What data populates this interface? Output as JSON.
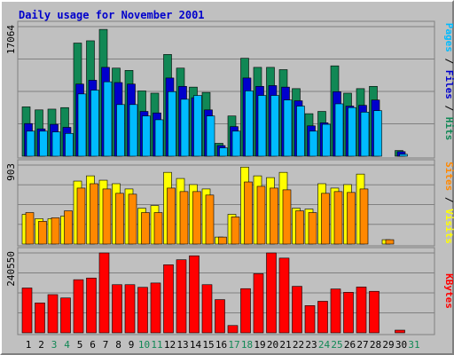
{
  "chart_data": {
    "type": "bar",
    "title": "Daily usage for November 2001",
    "days": [
      "1",
      "2",
      "3",
      "4",
      "5",
      "6",
      "7",
      "8",
      "9",
      "10",
      "11",
      "12",
      "13",
      "14",
      "15",
      "16",
      "17",
      "18",
      "19",
      "20",
      "21",
      "22",
      "23",
      "24",
      "25",
      "26",
      "27",
      "28",
      "29",
      "30",
      "31"
    ],
    "weekend_days": [
      "3",
      "4",
      "10",
      "11",
      "17",
      "18",
      "24",
      "25",
      "31"
    ],
    "panels": {
      "hits_files_pages": {
        "y_max_label": "17064",
        "ylim": [
          0,
          17064
        ],
        "series": [
          {
            "name": "Hits",
            "color": "#118855",
            "values": [
              6500,
              6100,
              6200,
              6400,
              14900,
              15200,
              16700,
              11600,
              11300,
              8600,
              8300,
              13400,
              11600,
              9100,
              8400,
              1700,
              5300,
              12900,
              11700,
              11700,
              11400,
              8900,
              5600,
              5900,
              11900,
              8300,
              8900,
              9200,
              0,
              750,
              0
            ]
          },
          {
            "name": "Files",
            "color": "#0000cc",
            "values": [
              4300,
              3600,
              4200,
              3800,
              9500,
              10000,
              11700,
              9700,
              9500,
              5900,
              5700,
              10300,
              9200,
              7700,
              6100,
              1400,
              3900,
              10300,
              9200,
              9300,
              9100,
              7300,
              4000,
              4400,
              8500,
              6600,
              6700,
              7400,
              0,
              600,
              0
            ]
          },
          {
            "name": "Pages",
            "color": "#00bbff",
            "values": [
              3300,
              3300,
              3200,
              3000,
              8200,
              8700,
              9800,
              6800,
              6800,
              5300,
              4800,
              8500,
              7500,
              8000,
              5300,
              1100,
              3300,
              8600,
              8000,
              8000,
              7400,
              6600,
              3300,
              4200,
              6900,
              6400,
              5800,
              6000,
              0,
              250,
              0
            ]
          }
        ]
      },
      "visits_sites": {
        "y_max_label": "903",
        "ylim": [
          0,
          903
        ],
        "series": [
          {
            "name": "Visits",
            "color": "#ffff00",
            "values": [
              340,
              290,
              290,
              320,
              720,
              780,
              730,
              690,
              630,
              410,
              440,
              820,
              750,
              680,
              630,
              80,
              340,
              880,
              780,
              760,
              820,
              410,
              400,
              690,
              640,
              680,
              800,
              0,
              50,
              0,
              0
            ]
          },
          {
            "name": "Sites",
            "color": "#ff8800",
            "values": [
              360,
              260,
              300,
              380,
              640,
              690,
              630,
              580,
              570,
              360,
              360,
              640,
              600,
              600,
              560,
              80,
              310,
              710,
              660,
              640,
              620,
              380,
              360,
              580,
              600,
              590,
              630,
              0,
              50,
              0,
              0
            ]
          }
        ]
      },
      "kbytes": {
        "y_max_label": "240550",
        "ylim": [
          0,
          240550
        ],
        "series": [
          {
            "name": "KBytes",
            "color": "#ff0000",
            "values": [
              135000,
              90000,
              115000,
              105000,
              160000,
              165000,
              240550,
              145000,
              145000,
              137000,
              150000,
              205000,
              220000,
              232000,
              145000,
              100000,
              22000,
              133000,
              178000,
              240550,
              225000,
              140000,
              82000,
              95000,
              132000,
              122000,
              138000,
              125000,
              0,
              8000,
              0
            ]
          }
        ]
      }
    },
    "right_labels": {
      "top": [
        {
          "text": "Pages",
          "color": "#00bbff"
        },
        {
          "text": " / ",
          "color": "#000000"
        },
        {
          "text": "Files",
          "color": "#0000cc"
        },
        {
          "text": " / ",
          "color": "#000000"
        },
        {
          "text": "Hits",
          "color": "#118855"
        }
      ],
      "middle": [
        {
          "text": "Sites",
          "color": "#ff8800"
        },
        {
          "text": " / ",
          "color": "#000000"
        },
        {
          "text": "Visits",
          "color": "#ffff00"
        }
      ],
      "bottom": [
        {
          "text": "KBytes",
          "color": "#ff0000"
        }
      ]
    },
    "weekday_label_color": "#000000",
    "weekend_label_color": "#118855",
    "grid": true
  }
}
